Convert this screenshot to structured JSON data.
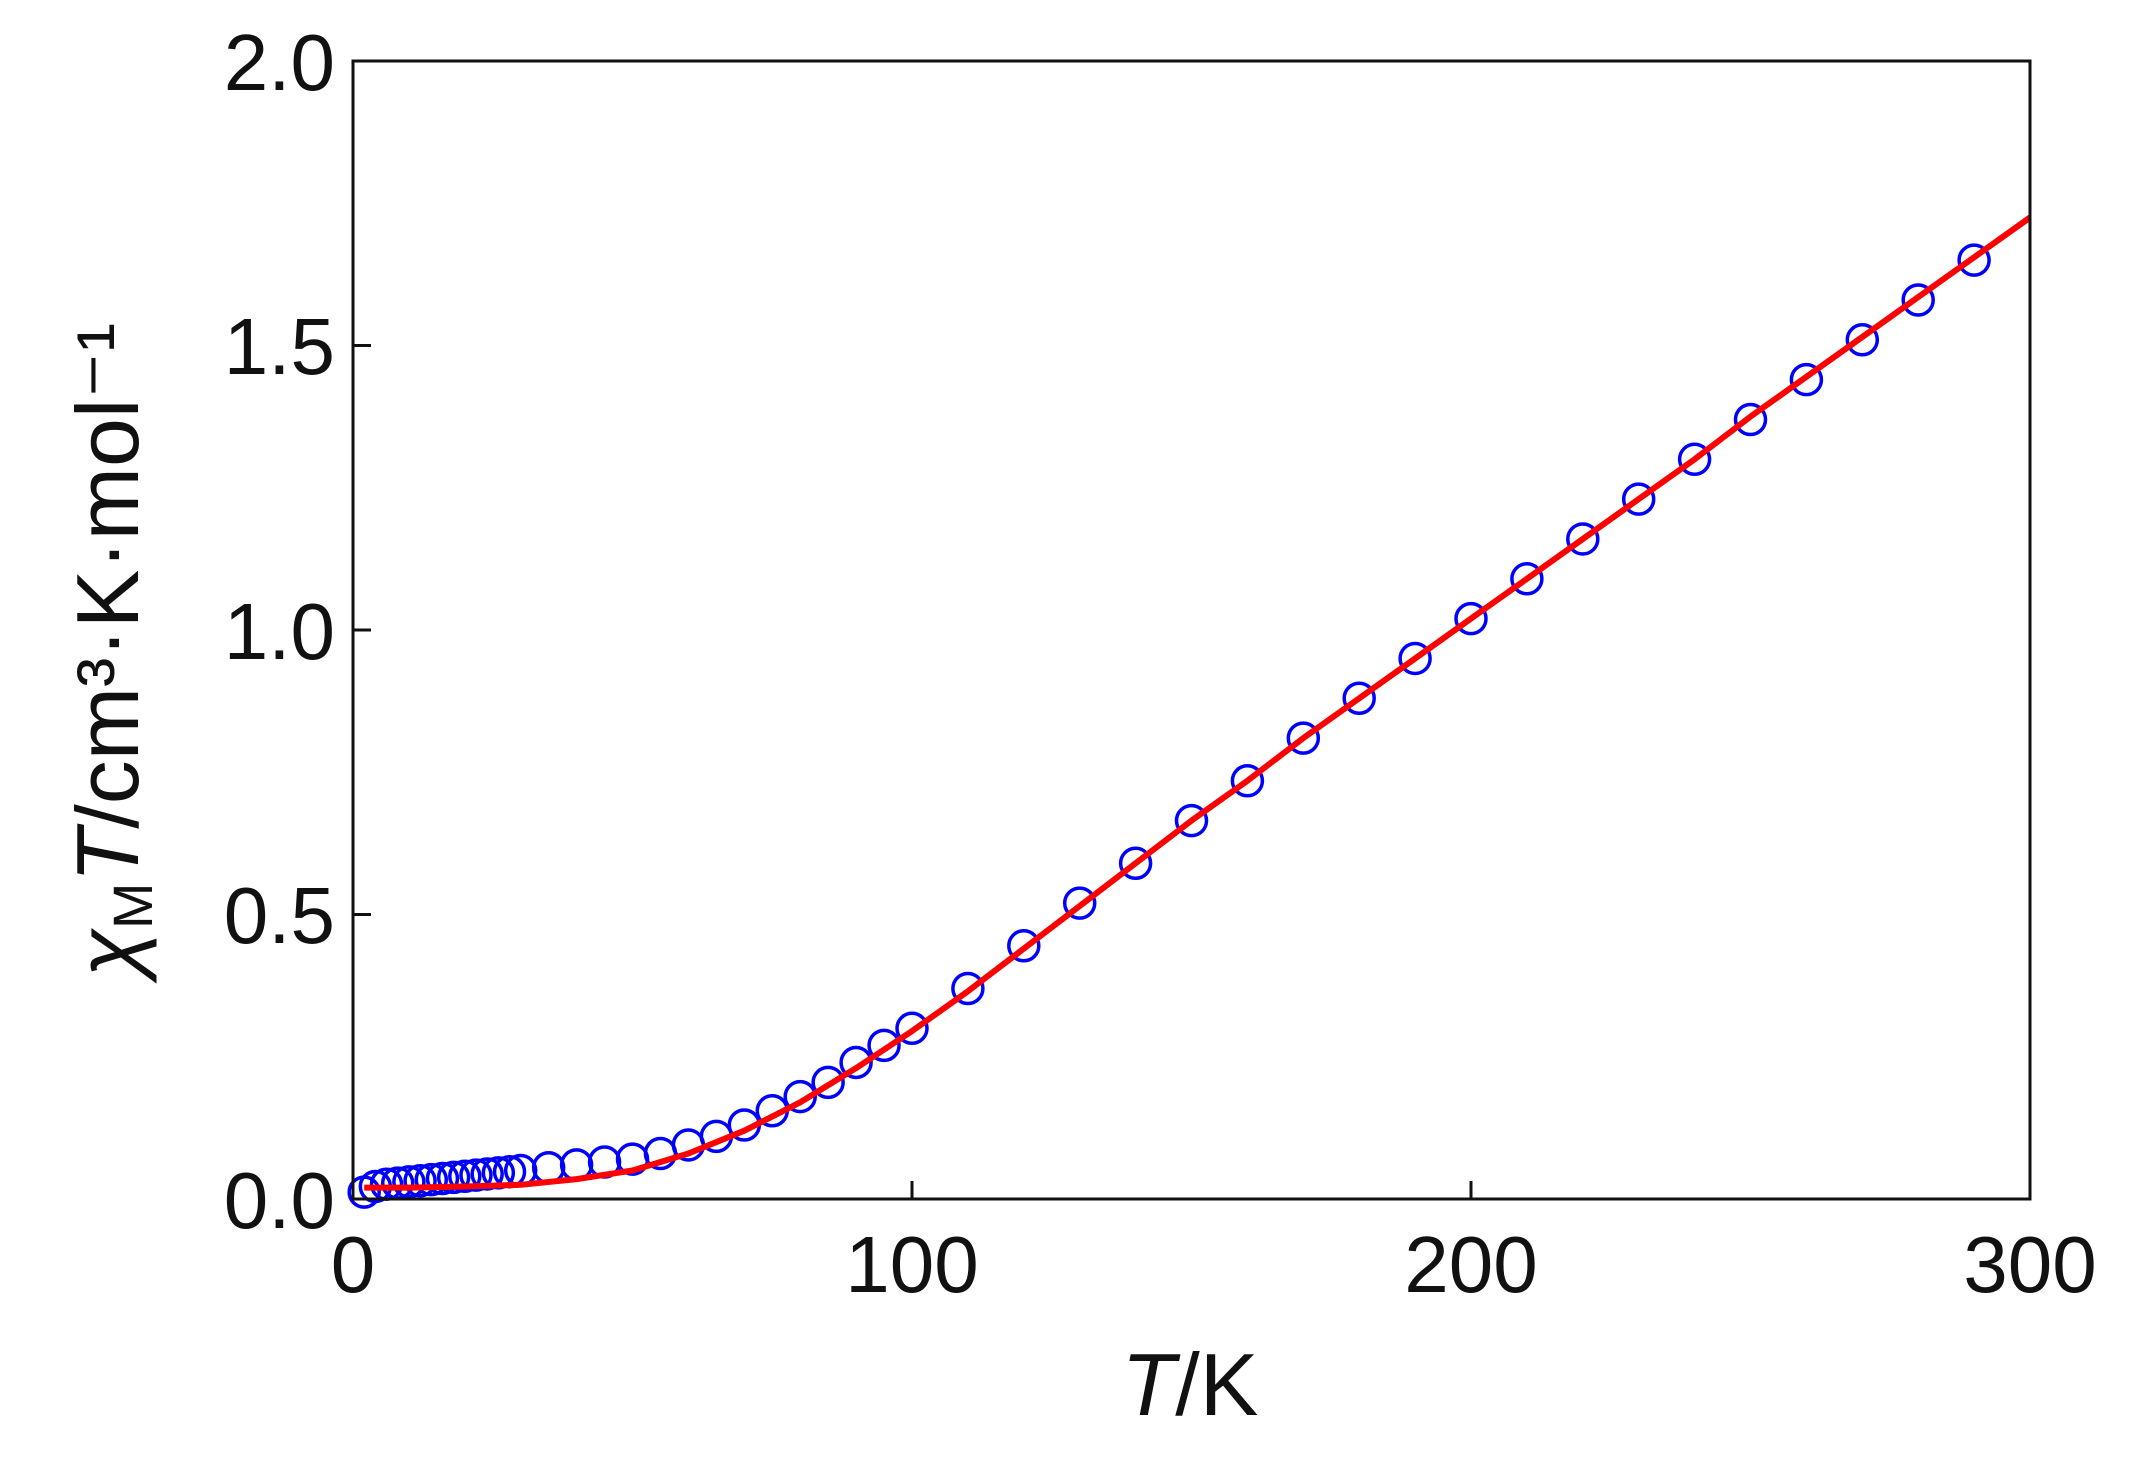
{
  "chart_data": {
    "type": "scatter",
    "title": "",
    "xlabel": {
      "italic": "T",
      "rest": "/K"
    },
    "ylabel": {
      "chi": "χ",
      "sub": "M",
      "italic": "T",
      "rest": "/cm³·K·mol⁻¹"
    },
    "xlim": [
      0,
      300
    ],
    "ylim": [
      0,
      2.0
    ],
    "xticks": [
      "0",
      "100",
      "200",
      "300"
    ],
    "yticks": [
      "0.0",
      "0.5",
      "1.0",
      "1.5",
      "2.0"
    ],
    "grid": false,
    "series": [
      {
        "kind": "markers",
        "marker": "open-circle",
        "color": "#0000ff",
        "x": [
          2,
          4,
          6,
          8,
          10,
          12,
          14,
          16,
          18,
          20,
          22,
          24,
          26,
          28,
          30,
          35,
          40,
          45,
          50,
          55,
          60,
          65,
          70,
          75,
          80,
          85,
          90,
          95,
          100,
          110,
          120,
          130,
          140,
          150,
          160,
          170,
          180,
          190,
          200,
          210,
          220,
          230,
          240,
          250,
          260,
          270,
          280,
          290
        ],
        "y": [
          0.012,
          0.022,
          0.026,
          0.028,
          0.03,
          0.032,
          0.034,
          0.036,
          0.038,
          0.04,
          0.042,
          0.044,
          0.046,
          0.048,
          0.05,
          0.055,
          0.06,
          0.065,
          0.07,
          0.08,
          0.095,
          0.11,
          0.13,
          0.155,
          0.18,
          0.205,
          0.24,
          0.27,
          0.3,
          0.37,
          0.445,
          0.52,
          0.59,
          0.665,
          0.735,
          0.81,
          0.88,
          0.95,
          1.02,
          1.09,
          1.16,
          1.23,
          1.3,
          1.37,
          1.44,
          1.51,
          1.58,
          1.65
        ]
      },
      {
        "kind": "line",
        "color": "#ff0000",
        "x": [
          2,
          10,
          20,
          30,
          40,
          50,
          60,
          70,
          80,
          90,
          100,
          110,
          120,
          130,
          140,
          150,
          160,
          170,
          180,
          190,
          200,
          210,
          220,
          230,
          240,
          250,
          260,
          270,
          280,
          290,
          300
        ],
        "y": [
          0.02,
          0.02,
          0.022,
          0.025,
          0.035,
          0.05,
          0.08,
          0.12,
          0.17,
          0.23,
          0.295,
          0.365,
          0.44,
          0.515,
          0.59,
          0.665,
          0.735,
          0.81,
          0.88,
          0.95,
          1.02,
          1.09,
          1.16,
          1.23,
          1.3,
          1.375,
          1.445,
          1.515,
          1.585,
          1.655,
          1.725
        ]
      }
    ]
  }
}
